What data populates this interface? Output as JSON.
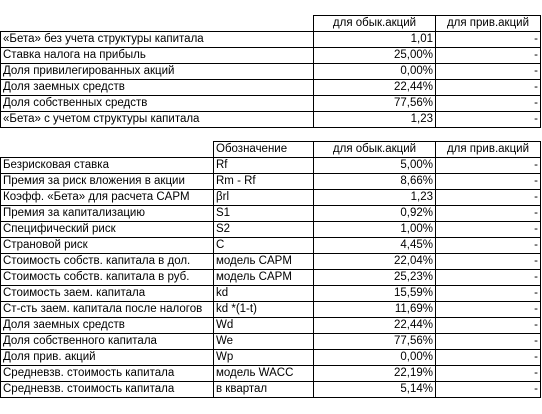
{
  "table1": {
    "headers": [
      "для обык.акций",
      "для прив.акций"
    ],
    "rows": [
      {
        "label": "«Бета» без учета структуры капитала",
        "common": "1,01",
        "preferred": "-"
      },
      {
        "label": "Ставка налога на прибыль",
        "common": "25,00%",
        "preferred": "-"
      },
      {
        "label": "Доля привилегированных акций",
        "common": "0,00%",
        "preferred": "-"
      },
      {
        "label": "Доля заемных средств",
        "common": "22,44%",
        "preferred": "-"
      },
      {
        "label": "Доля собственных средств",
        "common": "77,56%",
        "preferred": "-"
      },
      {
        "label": "«Бета» с учетом структуры капитала",
        "common": "1,23",
        "preferred": "-"
      }
    ]
  },
  "table2": {
    "headers": [
      "Обозначение",
      "для обык.акций",
      "для прив.акций"
    ],
    "rows": [
      {
        "label": "Безрисковая ставка",
        "symbol": "Rf",
        "common": "5,00%",
        "preferred": "-"
      },
      {
        "label": "Премия за риск вложения в акции",
        "symbol": "Rm - Rf",
        "common": "8,66%",
        "preferred": "-"
      },
      {
        "label": "Коэфф. «Бета» для расчета CAPM",
        "symbol": "βrl",
        "common": "1,23",
        "preferred": "-"
      },
      {
        "label": "Премия за капитализацию",
        "symbol": "S1",
        "common": "0,92%",
        "preferred": "-"
      },
      {
        "label": "Специфический риск",
        "symbol": "S2",
        "common": "1,00%",
        "preferred": "-"
      },
      {
        "label": "Страновой риск",
        "symbol": "C",
        "common": "4,45%",
        "preferred": "-"
      },
      {
        "label": "Стоимость собств. капитала в дол.",
        "symbol": "модель CAPM",
        "common": "22,04%",
        "preferred": "-"
      },
      {
        "label": "Стоимость собств. капитала в руб.",
        "symbol": "модель CAPM",
        "common": "25,23%",
        "preferred": "-"
      },
      {
        "label": "Стоимость заем. капитала",
        "symbol": "kd",
        "common": "15,59%",
        "preferred": "-"
      },
      {
        "label": "Ст-сть заем. капитала после налогов",
        "symbol": "kd *(1-t)",
        "common": "11,69%",
        "preferred": "-"
      },
      {
        "label": "Доля заемных средств",
        "symbol": "Wd",
        "common": "22,44%",
        "preferred": "-"
      },
      {
        "label": "Доля собственного капитала",
        "symbol": "We",
        "common": "77,56%",
        "preferred": "-"
      },
      {
        "label": "Доля прив. акций",
        "symbol": "Wp",
        "common": "0,00%",
        "preferred": "-"
      },
      {
        "label": "Средневзв. стоимость капитала",
        "symbol": "модель WACC",
        "common": "22,19%",
        "preferred": "-"
      },
      {
        "label": "Средневзв. стоимость капитала",
        "symbol": "в квартал",
        "common": "5,14%",
        "preferred": "-"
      }
    ]
  }
}
